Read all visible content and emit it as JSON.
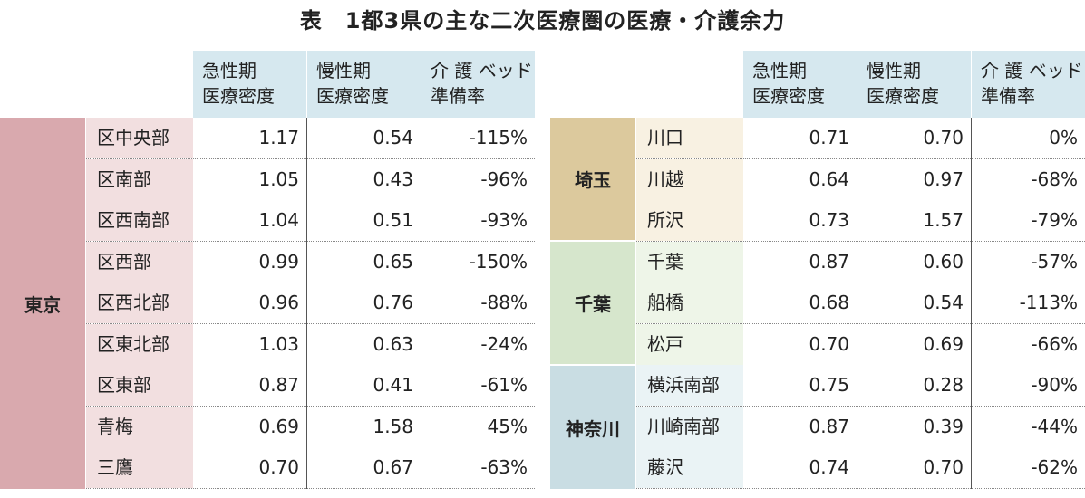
{
  "title": "表　1都3県の主な二次医療圏の医療・介護余力",
  "headers": {
    "acute": [
      "急性期",
      "医療密度"
    ],
    "chronic": [
      "慢性期",
      "医療密度"
    ],
    "care": [
      "介 護 ベッド",
      "準備率"
    ]
  },
  "colors": {
    "header_bg": "#d6e8ef",
    "tokyo_pref": "#d9a9ae",
    "tokyo_dist": "#f2dfe0",
    "saitama_pref": "#dcc99d",
    "saitama_dist": "#f8f1e2",
    "chiba_pref": "#d6e6cc",
    "chiba_dist": "#eef5e8",
    "kanagawa_pref": "#c9dde3",
    "kanagawa_dist": "#eaf3f5"
  },
  "left": {
    "prefecture": "東京",
    "rows": [
      {
        "district": "区中央部",
        "acute": "1.17",
        "chronic": "0.54",
        "care": "-115%"
      },
      {
        "district": "区南部",
        "acute": "1.05",
        "chronic": "0.43",
        "care": "-96%"
      },
      {
        "district": "区西南部",
        "acute": "1.04",
        "chronic": "0.51",
        "care": "-93%"
      },
      {
        "district": "区西部",
        "acute": "0.99",
        "chronic": "0.65",
        "care": "-150%"
      },
      {
        "district": "区西北部",
        "acute": "0.96",
        "chronic": "0.76",
        "care": "-88%"
      },
      {
        "district": "区東北部",
        "acute": "1.03",
        "chronic": "0.63",
        "care": "-24%"
      },
      {
        "district": "区東部",
        "acute": "0.87",
        "chronic": "0.41",
        "care": "-61%"
      },
      {
        "district": "青梅",
        "acute": "0.69",
        "chronic": "1.58",
        "care": "45%"
      },
      {
        "district": "三鷹",
        "acute": "0.70",
        "chronic": "0.67",
        "care": "-63%"
      }
    ]
  },
  "right": {
    "groups": [
      {
        "prefecture": "埼玉",
        "rows": [
          {
            "district": "川口",
            "acute": "0.71",
            "chronic": "0.70",
            "care": "0%"
          },
          {
            "district": "川越",
            "acute": "0.64",
            "chronic": "0.97",
            "care": "-68%"
          },
          {
            "district": "所沢",
            "acute": "0.73",
            "chronic": "1.57",
            "care": "-79%"
          }
        ]
      },
      {
        "prefecture": "千葉",
        "rows": [
          {
            "district": "千葉",
            "acute": "0.87",
            "chronic": "0.60",
            "care": "-57%"
          },
          {
            "district": "船橋",
            "acute": "0.68",
            "chronic": "0.54",
            "care": "-113%"
          },
          {
            "district": "松戸",
            "acute": "0.70",
            "chronic": "0.69",
            "care": "-66%"
          }
        ]
      },
      {
        "prefecture": "神奈川",
        "rows": [
          {
            "district": "横浜南部",
            "acute": "0.75",
            "chronic": "0.28",
            "care": "-90%"
          },
          {
            "district": "川崎南部",
            "acute": "0.87",
            "chronic": "0.39",
            "care": "-44%"
          },
          {
            "district": "藤沢",
            "acute": "0.74",
            "chronic": "0.70",
            "care": "-62%"
          }
        ]
      }
    ]
  }
}
